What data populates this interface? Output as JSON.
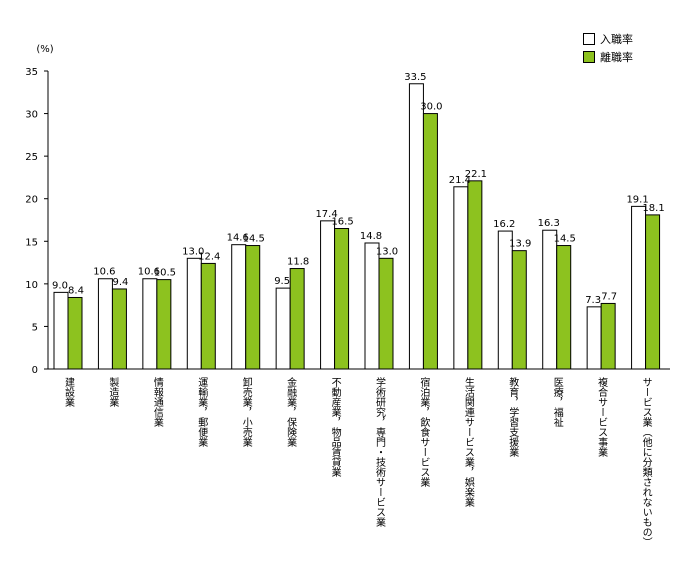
{
  "chart_data": {
    "type": "bar",
    "unit_label": "(%)",
    "ylim": [
      0,
      35
    ],
    "yticks": [
      0,
      5,
      10,
      15,
      20,
      25,
      30,
      35
    ],
    "grid": false,
    "legend_position": "top-right",
    "categories": [
      "建設業",
      "製造業",
      "情報通信業",
      "運輸業，郵便業",
      "卸売業，小売業",
      "金融業，保険業",
      "不動産業，物品賃貸業",
      "学術研究，専門・技術サービス業",
      "宿泊業，飲食サービス業",
      "生活関連サービス業，娯楽業",
      "教育，学習支援業",
      "医療，福祉",
      "複合サービス事業",
      "サービス業（他に分類されないもの）"
    ],
    "series": [
      {
        "name": "入職率",
        "color": "#ffffff",
        "values": [
          9.0,
          10.6,
          10.6,
          13.0,
          14.6,
          9.5,
          17.4,
          14.8,
          33.5,
          21.4,
          16.2,
          16.3,
          7.3,
          19.1
        ]
      },
      {
        "name": "離職率",
        "color": "#8dc21f",
        "values": [
          8.4,
          9.4,
          10.5,
          12.4,
          14.5,
          11.8,
          16.5,
          13.0,
          30.0,
          22.1,
          13.9,
          14.5,
          7.7,
          18.1
        ]
      }
    ]
  }
}
